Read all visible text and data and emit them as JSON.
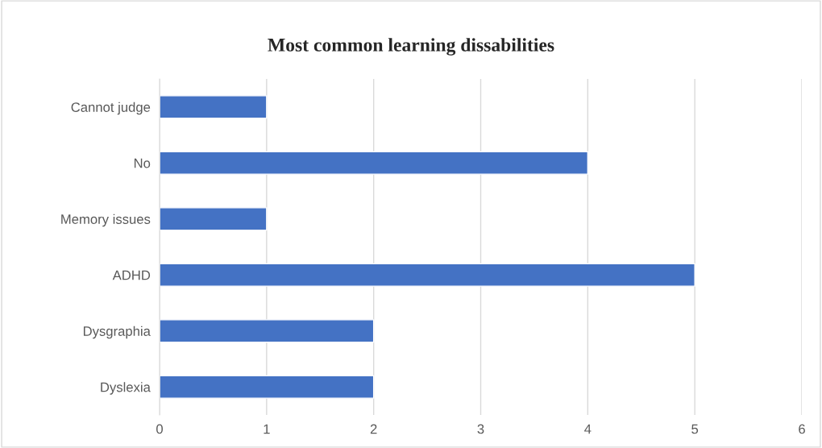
{
  "chart_data": {
    "type": "bar",
    "orientation": "horizontal",
    "title": "Most common learning dissabilities",
    "categories": [
      "Cannot judge",
      "No",
      "Memory issues",
      "ADHD",
      "Dysgraphia",
      "Dyslexia"
    ],
    "values": [
      1,
      4,
      1,
      5,
      2,
      2
    ],
    "color": "#4472c4",
    "xlim": [
      0,
      6
    ],
    "xticks": [
      0,
      1,
      2,
      3,
      4,
      5,
      6
    ],
    "grid": "x",
    "legend": false
  }
}
